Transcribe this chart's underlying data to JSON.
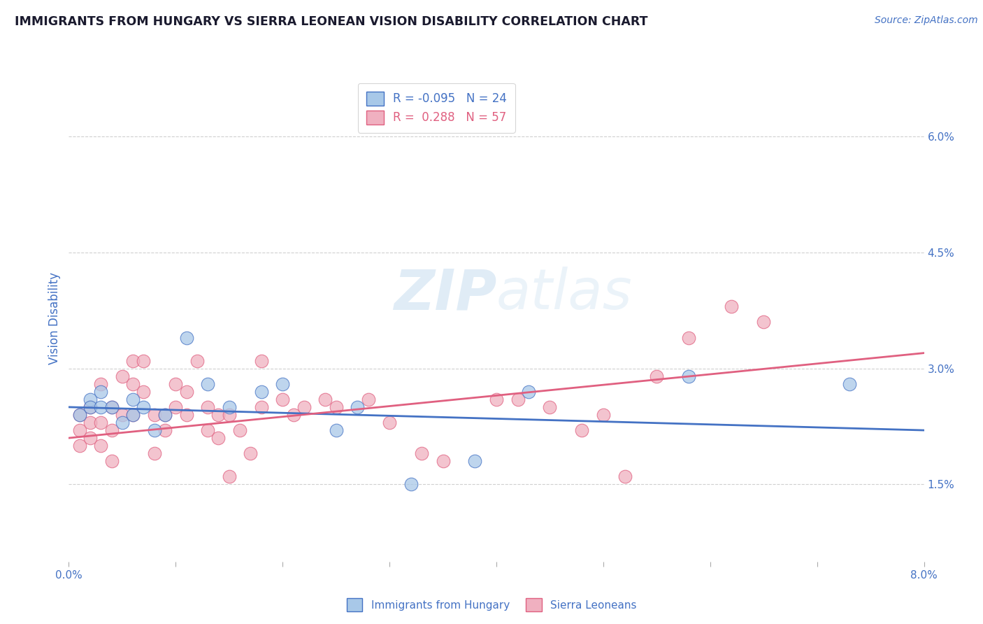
{
  "title": "IMMIGRANTS FROM HUNGARY VS SIERRA LEONEAN VISION DISABILITY CORRELATION CHART",
  "source_text": "Source: ZipAtlas.com",
  "ylabel": "Vision Disability",
  "legend_label1": "Immigrants from Hungary",
  "legend_label2": "Sierra Leoneans",
  "R1": "-0.095",
  "N1": "24",
  "R2": "0.288",
  "N2": "57",
  "xlim": [
    0.0,
    0.08
  ],
  "ylim": [
    0.005,
    0.068
  ],
  "xticks": [
    0.0,
    0.01,
    0.02,
    0.03,
    0.04,
    0.05,
    0.06,
    0.07,
    0.08
  ],
  "xtick_labels_ends": [
    "0.0%",
    "8.0%"
  ],
  "yticks_right": [
    0.015,
    0.03,
    0.045,
    0.06
  ],
  "ytick_labels_right": [
    "1.5%",
    "3.0%",
    "4.5%",
    "6.0%"
  ],
  "color_blue": "#a8c8e8",
  "color_pink": "#f0b0c0",
  "line_color_blue": "#4472c4",
  "line_color_pink": "#e06080",
  "background_color": "#ffffff",
  "watermark_text": "ZIPatlas",
  "blue_dots_x": [
    0.001,
    0.002,
    0.002,
    0.003,
    0.003,
    0.004,
    0.005,
    0.006,
    0.006,
    0.007,
    0.008,
    0.009,
    0.011,
    0.013,
    0.015,
    0.018,
    0.02,
    0.025,
    0.027,
    0.032,
    0.038,
    0.043,
    0.058,
    0.073
  ],
  "blue_dots_y": [
    0.024,
    0.026,
    0.025,
    0.025,
    0.027,
    0.025,
    0.023,
    0.024,
    0.026,
    0.025,
    0.022,
    0.024,
    0.034,
    0.028,
    0.025,
    0.027,
    0.028,
    0.022,
    0.025,
    0.015,
    0.018,
    0.027,
    0.029,
    0.028
  ],
  "pink_dots_x": [
    0.001,
    0.001,
    0.001,
    0.002,
    0.002,
    0.002,
    0.003,
    0.003,
    0.003,
    0.004,
    0.004,
    0.004,
    0.005,
    0.005,
    0.006,
    0.006,
    0.006,
    0.007,
    0.007,
    0.008,
    0.008,
    0.009,
    0.009,
    0.01,
    0.01,
    0.011,
    0.011,
    0.012,
    0.013,
    0.013,
    0.014,
    0.014,
    0.015,
    0.015,
    0.016,
    0.017,
    0.018,
    0.018,
    0.02,
    0.021,
    0.022,
    0.024,
    0.025,
    0.028,
    0.03,
    0.033,
    0.035,
    0.04,
    0.042,
    0.045,
    0.048,
    0.05,
    0.052,
    0.055,
    0.058,
    0.062,
    0.065
  ],
  "pink_dots_y": [
    0.024,
    0.022,
    0.02,
    0.025,
    0.023,
    0.021,
    0.028,
    0.023,
    0.02,
    0.025,
    0.022,
    0.018,
    0.029,
    0.024,
    0.031,
    0.028,
    0.024,
    0.031,
    0.027,
    0.024,
    0.019,
    0.024,
    0.022,
    0.028,
    0.025,
    0.027,
    0.024,
    0.031,
    0.025,
    0.022,
    0.024,
    0.021,
    0.024,
    0.016,
    0.022,
    0.019,
    0.031,
    0.025,
    0.026,
    0.024,
    0.025,
    0.026,
    0.025,
    0.026,
    0.023,
    0.019,
    0.018,
    0.026,
    0.026,
    0.025,
    0.022,
    0.024,
    0.016,
    0.029,
    0.034,
    0.038,
    0.036
  ],
  "blue_trend_x": [
    0.0,
    0.08
  ],
  "blue_trend_y": [
    0.025,
    0.022
  ],
  "pink_trend_x": [
    0.0,
    0.08
  ],
  "pink_trend_y": [
    0.021,
    0.032
  ],
  "grid_color": "#d0d0d0",
  "tick_color": "#4472c4",
  "title_color": "#1a1a2e",
  "source_color": "#4472c4"
}
